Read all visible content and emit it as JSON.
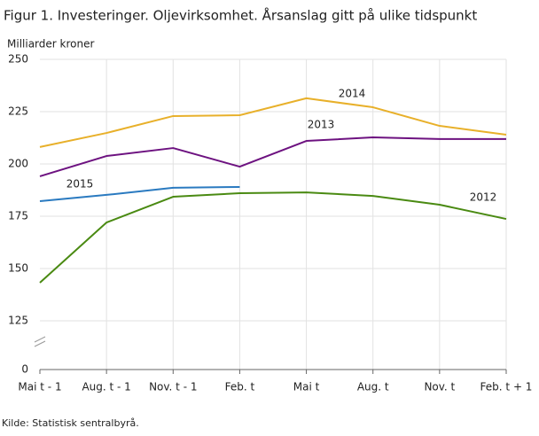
{
  "chart_data": {
    "type": "line",
    "title": "Figur 1. Investeringer. Oljevirksomhet. Årsanslag gitt på ulike tidspunkt",
    "y_label": "Milliarder  kroner",
    "source": "Kilde: Statistisk sentralbyrå.",
    "categories": [
      "Mai t - 1",
      "Aug. t - 1",
      "Nov. t - 1",
      "Feb. t",
      "Mai t",
      "Aug. t",
      "Nov. t",
      "Feb. t + 1"
    ],
    "series": [
      {
        "name": "2014",
        "color": "#e8b02a",
        "values": [
          208.1,
          214.8,
          222.9,
          223.3,
          231.4,
          227.1,
          218.2,
          214.0
        ]
      },
      {
        "name": "2013",
        "color": "#6d1280",
        "values": [
          194.1,
          203.8,
          207.6,
          198.7,
          211.0,
          212.7,
          211.9,
          211.9
        ]
      },
      {
        "name": "2015",
        "color": "#2a7ac0",
        "values": [
          182.2,
          185.2,
          188.6,
          189.0,
          null,
          null,
          null,
          null
        ]
      },
      {
        "name": "2012",
        "color": "#4a8a12",
        "values": [
          143.2,
          172.0,
          184.3,
          186.0,
          186.4,
          184.7,
          180.5,
          173.7
        ]
      }
    ],
    "ylim": [
      0,
      250
    ],
    "y_break": [
      0,
      125
    ],
    "yticks": [
      0,
      125,
      150,
      175,
      200,
      225,
      250
    ],
    "grid": true
  }
}
